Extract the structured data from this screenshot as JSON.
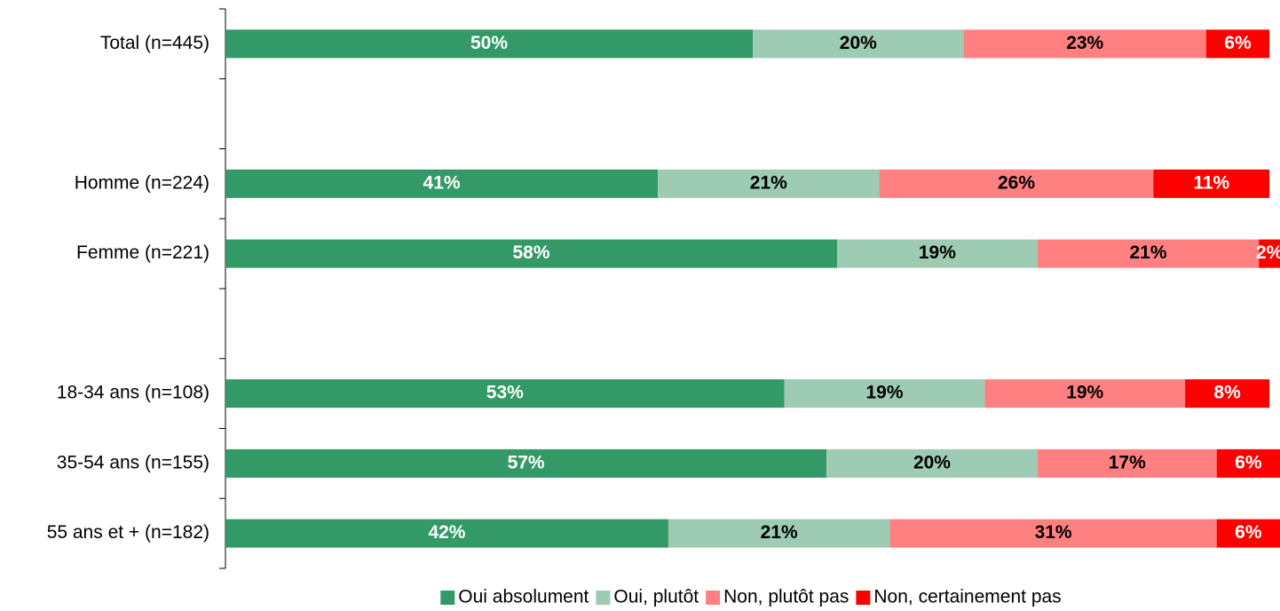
{
  "chart_data": {
    "type": "stacked_barh",
    "categories": [
      "Total (n=445)",
      null,
      "Homme (n=224)",
      "Femme (n=221)",
      null,
      "18-34 ans (n=108)",
      "35-54 ans (n=155)",
      "55 ans et + (n=182)"
    ],
    "xlim": [
      0,
      100
    ],
    "legend": "bottom",
    "series": [
      {
        "name": "Oui absolument",
        "color": "#339966",
        "label_color": "#ffffff",
        "values": [
          50,
          null,
          41,
          58,
          null,
          53,
          57,
          42
        ],
        "value_labels": [
          "50%",
          null,
          "41%",
          "58%",
          null,
          "53%",
          "57%",
          "42%"
        ]
      },
      {
        "name": "Oui, plutôt",
        "color": "#9dcbb3",
        "label_color": "#000000",
        "values": [
          20,
          null,
          21,
          19,
          null,
          19,
          20,
          21
        ],
        "value_labels": [
          "20%",
          null,
          "21%",
          "19%",
          null,
          "19%",
          "20%",
          "21%"
        ]
      },
      {
        "name": "Non, plutôt pas",
        "color": "#ff8080",
        "label_color": "#000000",
        "values": [
          23,
          null,
          26,
          21,
          null,
          19,
          17,
          31
        ],
        "value_labels": [
          "23%",
          null,
          "26%",
          "21%",
          null,
          "19%",
          "17%",
          "31%"
        ]
      },
      {
        "name": "Non, certainement pas",
        "color": "#ff0000",
        "label_color": "#ffffff",
        "values": [
          6,
          null,
          11,
          2,
          null,
          8,
          6,
          6
        ],
        "value_labels": [
          "6%",
          null,
          "11%",
          "2%",
          null,
          "8%",
          "6%",
          "6%"
        ]
      }
    ]
  }
}
